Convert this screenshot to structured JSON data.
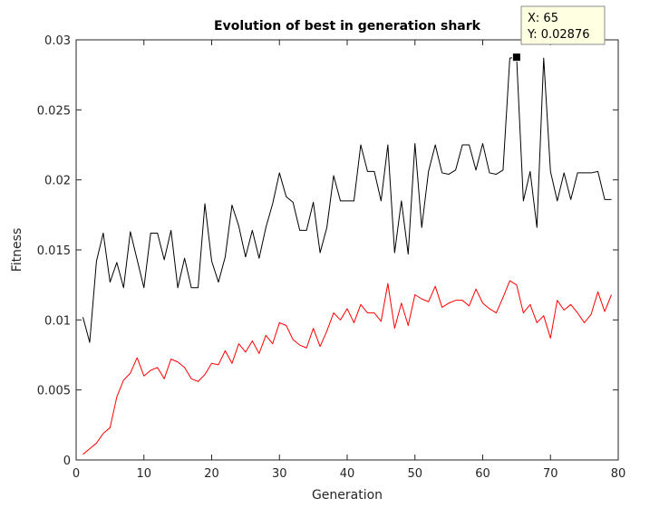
{
  "chart_data": {
    "type": "line",
    "title": "Evolution of best in generation shark",
    "xlabel": "Generation",
    "ylabel": "Fitness",
    "xlim": [
      0,
      80
    ],
    "ylim": [
      0,
      0.03
    ],
    "xticks": [
      "0",
      "10",
      "20",
      "30",
      "40",
      "50",
      "60",
      "70",
      "80"
    ],
    "yticks": [
      "0",
      "0.005",
      "0.01",
      "0.015",
      "0.02",
      "0.025",
      "0.03"
    ],
    "grid": false,
    "series": [
      {
        "color": "#000000",
        "x": [
          1,
          2,
          3,
          4,
          5,
          6,
          7,
          8,
          9,
          10,
          11,
          12,
          13,
          14,
          15,
          16,
          17,
          18,
          19,
          20,
          21,
          22,
          23,
          24,
          25,
          26,
          27,
          28,
          29,
          30,
          31,
          32,
          33,
          34,
          35,
          36,
          37,
          38,
          39,
          40,
          41,
          42,
          43,
          44,
          45,
          46,
          47,
          48,
          49,
          50,
          51,
          52,
          53,
          54,
          55,
          56,
          57,
          58,
          59,
          60,
          61,
          62,
          63,
          64,
          65,
          66,
          67,
          68,
          69,
          70,
          71,
          72,
          73,
          74,
          75,
          76,
          77,
          78,
          79
        ],
        "values": [
          0.0102,
          0.0084,
          0.0142,
          0.0162,
          0.0127,
          0.0141,
          0.0123,
          0.0163,
          0.0143,
          0.0123,
          0.0162,
          0.0162,
          0.0143,
          0.0164,
          0.0123,
          0.0144,
          0.0123,
          0.0123,
          0.0183,
          0.0142,
          0.0127,
          0.0145,
          0.0182,
          0.0167,
          0.0145,
          0.0164,
          0.0144,
          0.0166,
          0.0183,
          0.0205,
          0.0188,
          0.0184,
          0.0164,
          0.0164,
          0.0184,
          0.0148,
          0.0166,
          0.0203,
          0.0185,
          0.0185,
          0.0185,
          0.0225,
          0.0206,
          0.0206,
          0.0185,
          0.0225,
          0.0148,
          0.0185,
          0.0147,
          0.0226,
          0.0166,
          0.0206,
          0.0225,
          0.0205,
          0.0204,
          0.0207,
          0.0225,
          0.0225,
          0.0207,
          0.0226,
          0.0205,
          0.0204,
          0.0207,
          0.0287,
          0.02876,
          0.0185,
          0.0206,
          0.0166,
          0.0287,
          0.0206,
          0.0185,
          0.0205,
          0.0186,
          0.0205,
          0.0205,
          0.0205,
          0.0206,
          0.0186,
          0.0186
        ]
      },
      {
        "color": "#ff0000",
        "x": [
          1,
          2,
          3,
          4,
          5,
          6,
          7,
          8,
          9,
          10,
          11,
          12,
          13,
          14,
          15,
          16,
          17,
          18,
          19,
          20,
          21,
          22,
          23,
          24,
          25,
          26,
          27,
          28,
          29,
          30,
          31,
          32,
          33,
          34,
          35,
          36,
          37,
          38,
          39,
          40,
          41,
          42,
          43,
          44,
          45,
          46,
          47,
          48,
          49,
          50,
          51,
          52,
          53,
          54,
          55,
          56,
          57,
          58,
          59,
          60,
          61,
          62,
          63,
          64,
          65,
          66,
          67,
          68,
          69,
          70,
          71,
          72,
          73,
          74,
          75,
          76,
          77,
          78,
          79
        ],
        "values": [
          0.0004,
          0.0008,
          0.0012,
          0.0019,
          0.0023,
          0.0045,
          0.0057,
          0.0062,
          0.0073,
          0.006,
          0.0064,
          0.0066,
          0.0058,
          0.0072,
          0.007,
          0.0066,
          0.0058,
          0.0056,
          0.0061,
          0.0069,
          0.0068,
          0.0078,
          0.0069,
          0.0083,
          0.0077,
          0.0085,
          0.0076,
          0.0089,
          0.0083,
          0.0098,
          0.0096,
          0.0086,
          0.0082,
          0.008,
          0.0094,
          0.0081,
          0.0092,
          0.0105,
          0.01,
          0.0108,
          0.0098,
          0.0111,
          0.0105,
          0.0105,
          0.0099,
          0.0126,
          0.0094,
          0.0112,
          0.0096,
          0.0118,
          0.0115,
          0.0113,
          0.0124,
          0.0109,
          0.0112,
          0.0114,
          0.0114,
          0.011,
          0.0122,
          0.0112,
          0.0108,
          0.0105,
          0.0116,
          0.0128,
          0.0125,
          0.0105,
          0.0111,
          0.0098,
          0.0103,
          0.0087,
          0.0114,
          0.0107,
          0.0111,
          0.0105,
          0.0098,
          0.0104,
          0.012,
          0.0106,
          0.0118
        ]
      }
    ],
    "datatip": {
      "x": 65,
      "y": 0.02876,
      "x_text": "X: 65",
      "y_text": "Y: 0.02876"
    }
  }
}
